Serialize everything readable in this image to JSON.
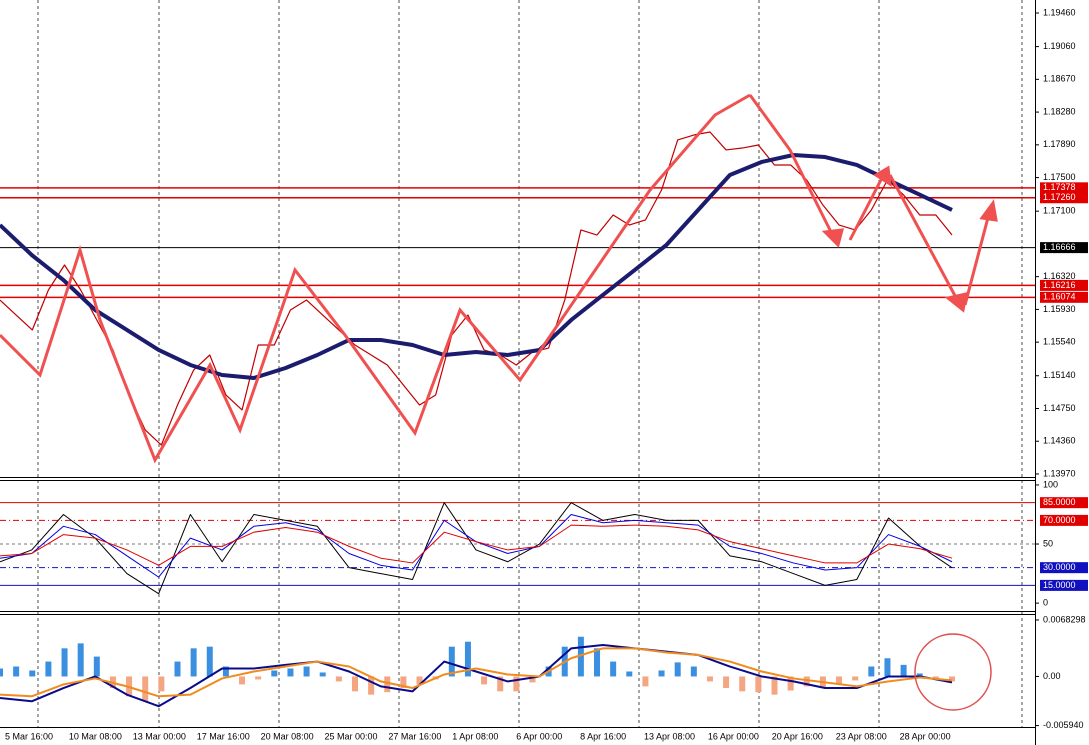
{
  "chart_data": [
    {
      "type": "line",
      "ylim": [
        1.13934,
        1.19615
      ],
      "yticks": [
        {
          "value": 1.1946,
          "label": "1.19460"
        },
        {
          "value": 1.1906,
          "label": "1.19060"
        },
        {
          "value": 1.1867,
          "label": "1.18670"
        },
        {
          "value": 1.1828,
          "label": "1.18280"
        },
        {
          "value": 1.1789,
          "label": "1.17890"
        },
        {
          "value": 1.175,
          "label": "1.17500"
        },
        {
          "value": 1.171,
          "label": "1.17100"
        },
        {
          "value": 1.1632,
          "label": "1.16320"
        },
        {
          "value": 1.1593,
          "label": "1.15930"
        },
        {
          "value": 1.1554,
          "label": "1.15540"
        },
        {
          "value": 1.1514,
          "label": "1.15140"
        },
        {
          "value": 1.1475,
          "label": "1.14750"
        },
        {
          "value": 1.1436,
          "label": "1.14360"
        },
        {
          "value": 1.1397,
          "label": "1.13970"
        }
      ],
      "levels": [
        {
          "value": 1.17378,
          "label": "1.17378",
          "color": "#e00000"
        },
        {
          "value": 1.1726,
          "label": "1.17260",
          "color": "#e00000"
        },
        {
          "value": 1.16666,
          "label": "1.16666",
          "color": "#000000"
        },
        {
          "value": 1.16216,
          "label": "1.16216",
          "color": "#e00000"
        },
        {
          "value": 1.16074,
          "label": "1.16074",
          "color": "#e00000"
        }
      ],
      "series": [
        {
          "color": "#c00000",
          "width": 1.2,
          "values": [
            1.16042,
            1.15863,
            1.15685,
            1.16161,
            1.16459,
            1.16161,
            1.15804,
            1.15447,
            1.14911,
            1.14494,
            1.14315,
            1.14791,
            1.15208,
            1.15387,
            1.14911,
            1.14732,
            1.15506,
            1.15506,
            1.15923,
            1.16042,
            1.15863,
            1.15685,
            1.15506,
            1.15387,
            1.15268,
            1.1503,
            1.14791,
            1.14911,
            1.15625,
            1.15863,
            1.15447,
            1.15387,
            1.15268,
            1.15423,
            1.1547,
            1.16042,
            1.16876,
            1.16816,
            1.17054,
            1.16935,
            1.16995,
            1.17352,
            1.17948,
            1.18007,
            1.18043,
            1.17829,
            1.17852,
            1.17888,
            1.1765,
            1.1765,
            1.17471,
            1.17173,
            1.16935,
            1.16876,
            1.17114,
            1.17471,
            1.17293,
            1.17054,
            1.17054,
            1.16816
          ]
        },
        {
          "color": "#1c1c6e",
          "width": 4,
          "values": [
            1.16935,
            1.16578,
            1.1628,
            1.15923,
            1.15685,
            1.15447,
            1.15268,
            1.15149,
            1.15113,
            1.15232,
            1.15387,
            1.15566,
            1.15566,
            1.15506,
            1.15387,
            1.15423,
            1.15387,
            1.15447,
            1.15804,
            1.16102,
            1.16399,
            1.16697,
            1.17114,
            1.17531,
            1.17686,
            1.17769,
            1.17745,
            1.1765,
            1.17471,
            1.17293,
            1.17114
          ]
        }
      ]
    },
    {
      "type": "line",
      "ylim": [
        -6.67,
        103.33
      ],
      "yticks": [
        100,
        50,
        0
      ],
      "levels": [
        {
          "value": 85,
          "label": "85.0000",
          "color": "#e00000",
          "dash": false
        },
        {
          "value": 70,
          "label": "70.0000",
          "color": "#e00000",
          "dash": true
        },
        {
          "value": 30,
          "label": "30.0000",
          "color": "#1010c0",
          "dash": true
        },
        {
          "value": 15,
          "label": "15.0000",
          "color": "#1010c0",
          "dash": false
        }
      ],
      "series": [
        {
          "color": "#000000",
          "width": 1,
          "values": [
            35,
            45,
            75,
            55,
            25,
            8,
            75,
            35,
            75,
            70,
            65,
            30,
            25,
            20,
            85,
            45,
            35,
            50,
            85,
            70,
            75,
            70,
            70,
            40,
            35,
            25,
            15,
            20,
            72,
            48,
            30
          ]
        },
        {
          "color": "#0000e0",
          "width": 1,
          "values": [
            38,
            42,
            65,
            58,
            40,
            22,
            55,
            45,
            65,
            68,
            62,
            42,
            32,
            28,
            70,
            52,
            42,
            48,
            75,
            68,
            70,
            68,
            66,
            48,
            42,
            34,
            28,
            30,
            58,
            48,
            35
          ]
        },
        {
          "color": "#e00000",
          "width": 1,
          "values": [
            40,
            42,
            58,
            55,
            45,
            32,
            48,
            48,
            60,
            64,
            60,
            48,
            38,
            34,
            60,
            52,
            45,
            48,
            66,
            65,
            66,
            65,
            62,
            52,
            46,
            40,
            34,
            34,
            50,
            46,
            38
          ]
        }
      ]
    },
    {
      "type": "bar",
      "ylim": [
        -0.006111,
        0.0074288
      ],
      "yticks": [
        0.0068298,
        {
          "value": 0,
          "label": "0.00"
        },
        {
          "value": -0.00594,
          "label": "-0.005940"
        }
      ],
      "series": [
        {
          "type": "bar",
          "color": "#3b8fe0",
          "negative_color": "#f4a582",
          "values": [
            0.00096,
            0.0012,
            0.00072,
            0.0018,
            0.0034,
            0.004,
            0.0024,
            -0.0014,
            -0.0024,
            -0.003,
            -0.0018,
            0.0018,
            0.0034,
            0.0036,
            0.0012,
            -0.00096,
            -0.00036,
            0.00072,
            0.00096,
            0.0012,
            0.00048,
            -0.0006,
            -0.0018,
            -0.0022,
            -0.0019,
            -0.0014,
            -0.00096,
            -0.00036,
            0.0036,
            0.0042,
            -0.00096,
            -0.0018,
            -0.0018,
            -0.00072,
            0.0012,
            0.0036,
            0.0048,
            0.0034,
            0.0018,
            0.0006,
            -0.0012,
            0.00072,
            0.0017,
            0.0012,
            -0.0006,
            -0.0014,
            -0.0018,
            -0.0019,
            -0.0022,
            -0.0017,
            -0.0012,
            -0.0014,
            -0.00096,
            -0.00048,
            0.0012,
            0.0022,
            0.0014,
            0.00036,
            -0.00024,
            -0.0006
          ]
        },
        {
          "type": "line",
          "color": "#0a0a8c",
          "width": 2,
          "values": [
            -0.0026,
            -0.003,
            -0.0014,
            0,
            -0.0022,
            -0.0036,
            -0.0014,
            0.00096,
            0.00096,
            0.0014,
            0.0018,
            0.0006,
            -0.0012,
            -0.0018,
            0.0018,
            0.0006,
            -0.0006,
            0,
            0.0034,
            0.0038,
            0.0034,
            0.003,
            0.0026,
            0.0012,
            0,
            -0.0006,
            -0.0014,
            -0.0014,
            0,
            0,
            -0.00072
          ]
        },
        {
          "type": "line",
          "color": "#f08c1e",
          "width": 2,
          "values": [
            -0.0022,
            -0.0024,
            -0.00096,
            -0.00024,
            -0.0012,
            -0.0024,
            -0.0022,
            -0.00024,
            0.0006,
            0.0012,
            0.0018,
            0.0012,
            -0.0006,
            -0.0014,
            0.00024,
            0.00096,
            0.00024,
            0,
            0.0022,
            0.0034,
            0.0034,
            0.0029,
            0.0026,
            0.0018,
            0.0006,
            -0.00024,
            -0.00072,
            -0.0012,
            -0.0006,
            -0.00012,
            -0.00048
          ]
        }
      ],
      "x_labels": [
        "5 Mar 16:00",
        "10 Mar 08:00",
        "13 Mar 00:00",
        "17 Mar 16:00",
        "20 Mar 08:00",
        "25 Mar 00:00",
        "27 Mar 16:00",
        "1 Apr 08:00",
        "6 Apr 00:00",
        "8 Apr 16:00",
        "13 Apr 08:00",
        "16 Apr 00:00",
        "20 Apr 16:00",
        "23 Apr 08:00",
        "28 Apr 00:00"
      ]
    }
  ]
}
